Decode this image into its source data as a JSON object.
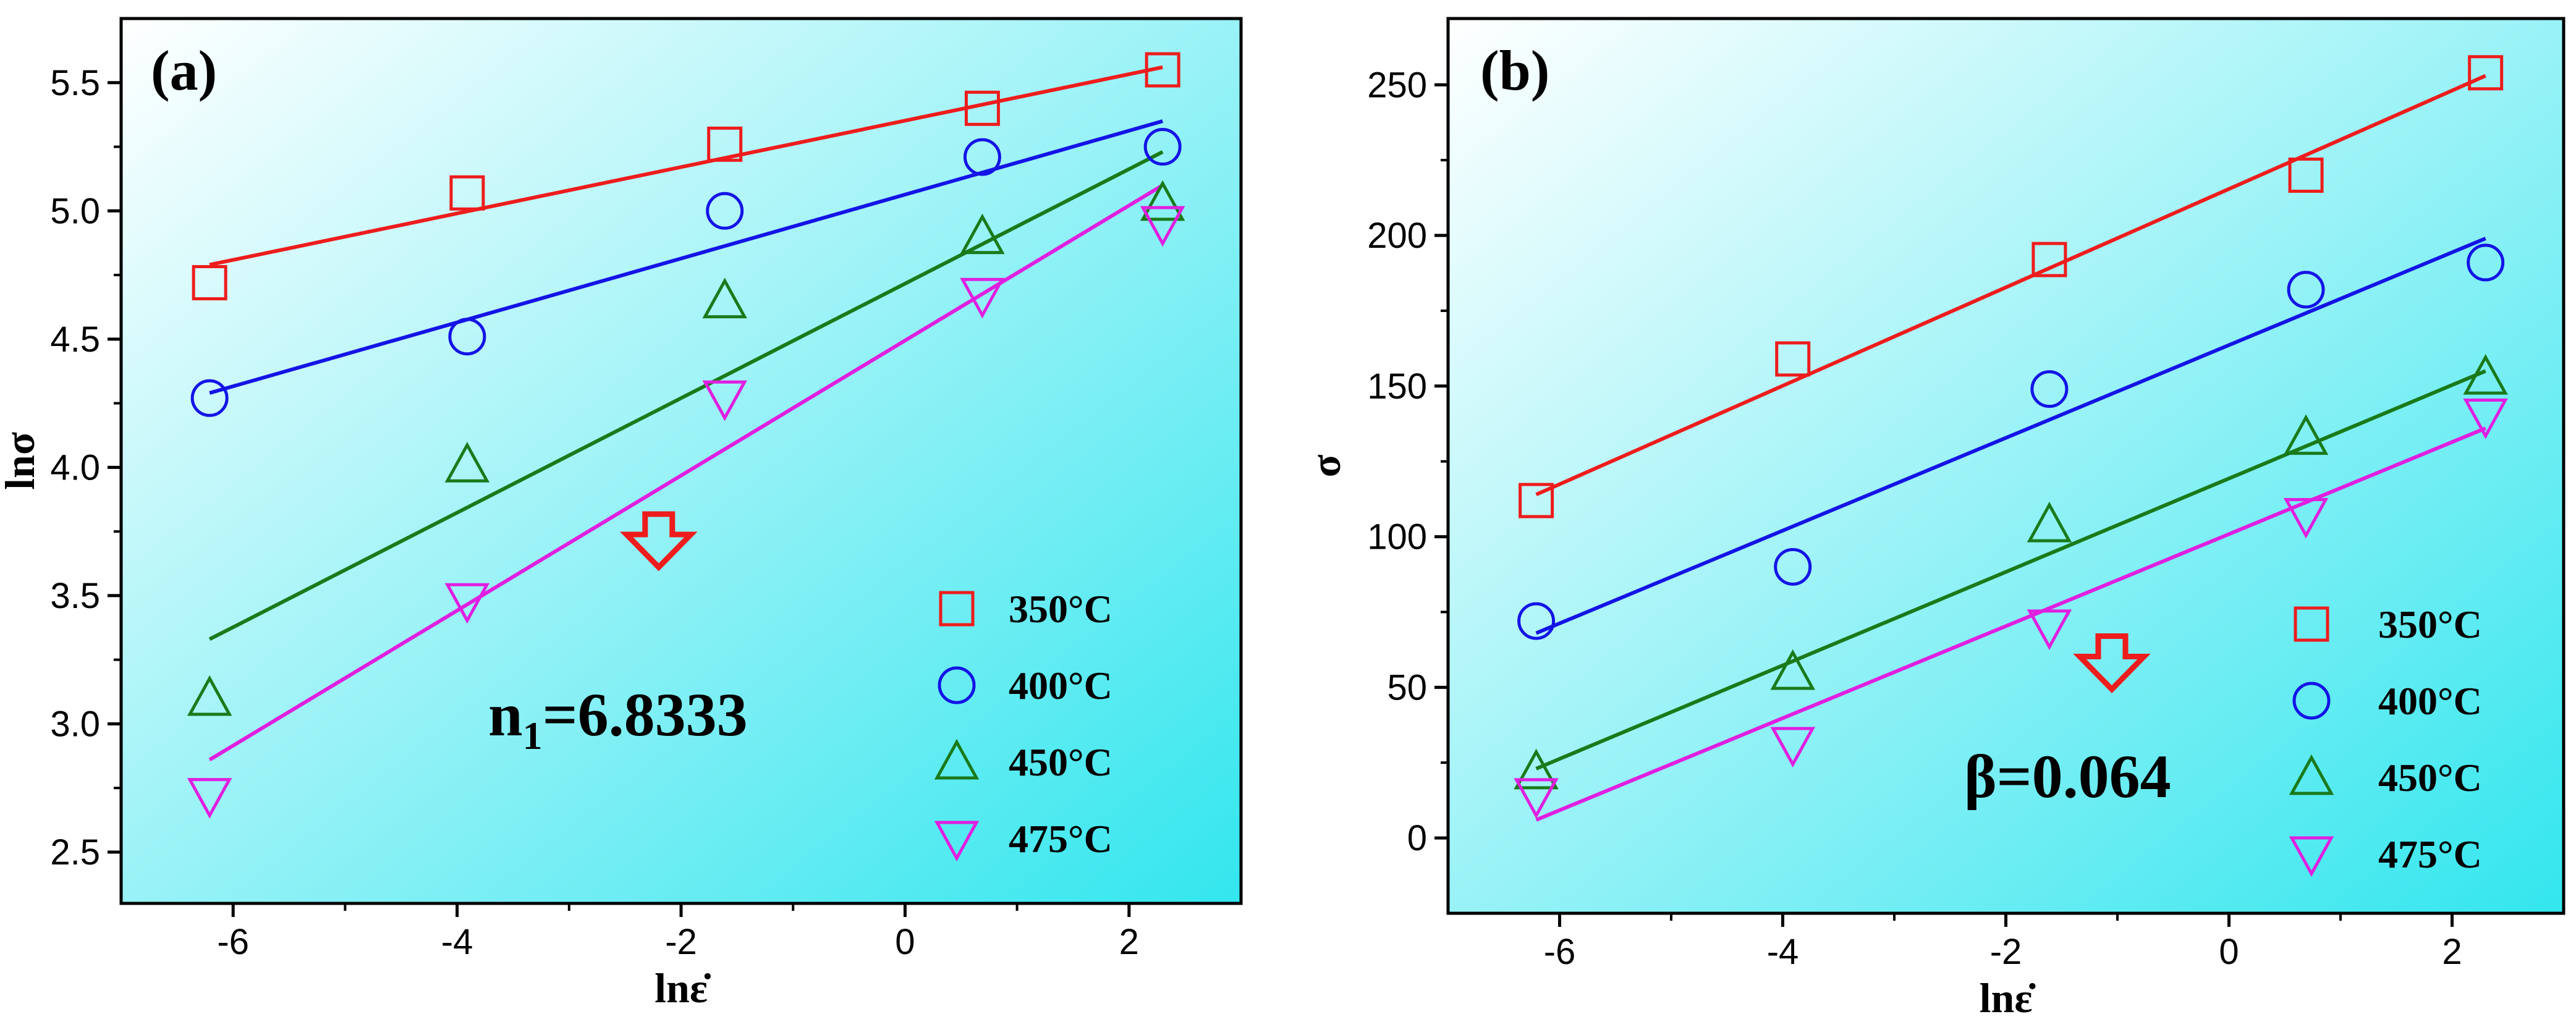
{
  "chart_data": [
    {
      "type": "scatter",
      "panel_label": "(a)",
      "xlabel": "lnε̇",
      "ylabel": "lnσ",
      "xlim": [
        -7.0,
        3.0
      ],
      "ylim": [
        2.3,
        5.75
      ],
      "xticks": [
        -6,
        -4,
        -2,
        0,
        2
      ],
      "xtick_labels": [
        "-6",
        "-4",
        "-2",
        "0",
        "2"
      ],
      "yticks": [
        2.5,
        3.0,
        3.5,
        4.0,
        4.5,
        5.0,
        5.5
      ],
      "ytick_labels": [
        "2.5",
        "3.0",
        "3.5",
        "4.0",
        "4.5",
        "5.0",
        "5.5"
      ],
      "x": [
        -6.21,
        -3.91,
        -1.61,
        0.69,
        2.3
      ],
      "series": [
        {
          "name": "350°C",
          "marker": "square",
          "color": "#ee1c1c",
          "values": [
            4.72,
            5.07,
            5.26,
            5.4,
            5.55
          ],
          "fit": [
            4.79,
            5.56
          ]
        },
        {
          "name": "400°C",
          "marker": "circle",
          "color": "#1414e6",
          "values": [
            4.27,
            4.51,
            5.0,
            5.21,
            5.25
          ],
          "fit": [
            4.29,
            5.35
          ]
        },
        {
          "name": "450°C",
          "marker": "triangle-up",
          "color": "#1a7a1a",
          "values": [
            3.1,
            4.01,
            4.65,
            4.9,
            5.03
          ],
          "fit": [
            3.33,
            5.23
          ]
        },
        {
          "name": "475°C",
          "marker": "triangle-down",
          "color": "#e01ee0",
          "values": [
            2.72,
            3.48,
            4.27,
            4.67,
            4.95
          ],
          "fit": [
            2.86,
            5.1
          ]
        }
      ],
      "annotation": {
        "main": "n",
        "sub": "1",
        "rest": "=6.8333"
      },
      "arrow": {
        "x": -2.2,
        "y": 3.63
      },
      "background": {
        "from": "#ffffff",
        "to": "#33e6ee"
      }
    },
    {
      "type": "scatter",
      "panel_label": "(b)",
      "xlabel": "lnε̇",
      "ylabel": "σ",
      "xlim": [
        -7.0,
        3.0
      ],
      "ylim": [
        -25,
        272
      ],
      "xticks": [
        -6,
        -4,
        -2,
        0,
        2
      ],
      "xtick_labels": [
        "-6",
        "-4",
        "-2",
        "0",
        "2"
      ],
      "yticks": [
        0,
        50,
        100,
        150,
        200,
        250
      ],
      "ytick_labels": [
        "0",
        "50",
        "100",
        "150",
        "200",
        "250"
      ],
      "x": [
        -6.21,
        -3.91,
        -1.61,
        0.69,
        2.3
      ],
      "series": [
        {
          "name": "350°C",
          "marker": "square",
          "color": "#ee1c1c",
          "values": [
            112,
            159,
            192,
            220,
            254
          ],
          "fit": [
            114,
            253
          ]
        },
        {
          "name": "400°C",
          "marker": "circle",
          "color": "#1414e6",
          "values": [
            72,
            90,
            149,
            182,
            191
          ],
          "fit": [
            68,
            199
          ]
        },
        {
          "name": "450°C",
          "marker": "triangle-up",
          "color": "#1a7a1a",
          "values": [
            22,
            55,
            104,
            133,
            153
          ],
          "fit": [
            23,
            155
          ]
        },
        {
          "name": "475°C",
          "marker": "triangle-down",
          "color": "#e01ee0",
          "values": [
            14,
            31,
            70,
            107,
            140
          ],
          "fit": [
            6,
            136
          ]
        }
      ],
      "annotation": {
        "main": "β=0.064",
        "sub": "",
        "rest": ""
      },
      "arrow": {
        "x": -1.05,
        "y": 51
      },
      "background": {
        "from": "#ffffff",
        "to": "#33e6ee"
      }
    }
  ]
}
